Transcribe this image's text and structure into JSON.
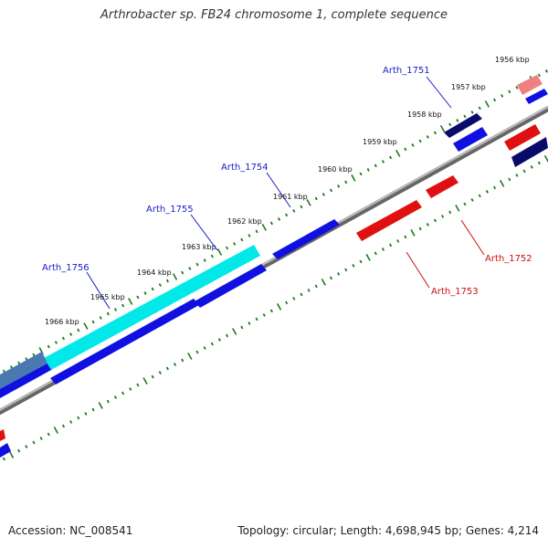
{
  "title": "Arthrobacter sp. FB24 chromosome 1, complete sequence",
  "footer": {
    "accession": "Accession: NC_008541",
    "stats": "Topology: circular; Length: 4,698,945 bp; Genes: 4,214"
  },
  "colors": {
    "forward_cds": "#1010e0",
    "reverse_cds": "#e01010",
    "highlight_cds": "#00e8e8",
    "backbone": "#888888",
    "tick": "#1a7a1a",
    "forward_label": "#1a1acc",
    "reverse_label": "#cc1010"
  },
  "kbp_ticks": [
    "1956 kbp",
    "1957 kbp",
    "1958 kbp",
    "1959 kbp",
    "1960 kbp",
    "1961 kbp",
    "1962 kbp",
    "1963 kbp",
    "1964 kbp",
    "1965 kbp",
    "1966 kbp"
  ],
  "gene_labels": {
    "forward": [
      "Arth_1751",
      "Arth_1754",
      "Arth_1755",
      "Arth_1756"
    ],
    "reverse": [
      "Arth_1752",
      "Arth_1753"
    ]
  }
}
